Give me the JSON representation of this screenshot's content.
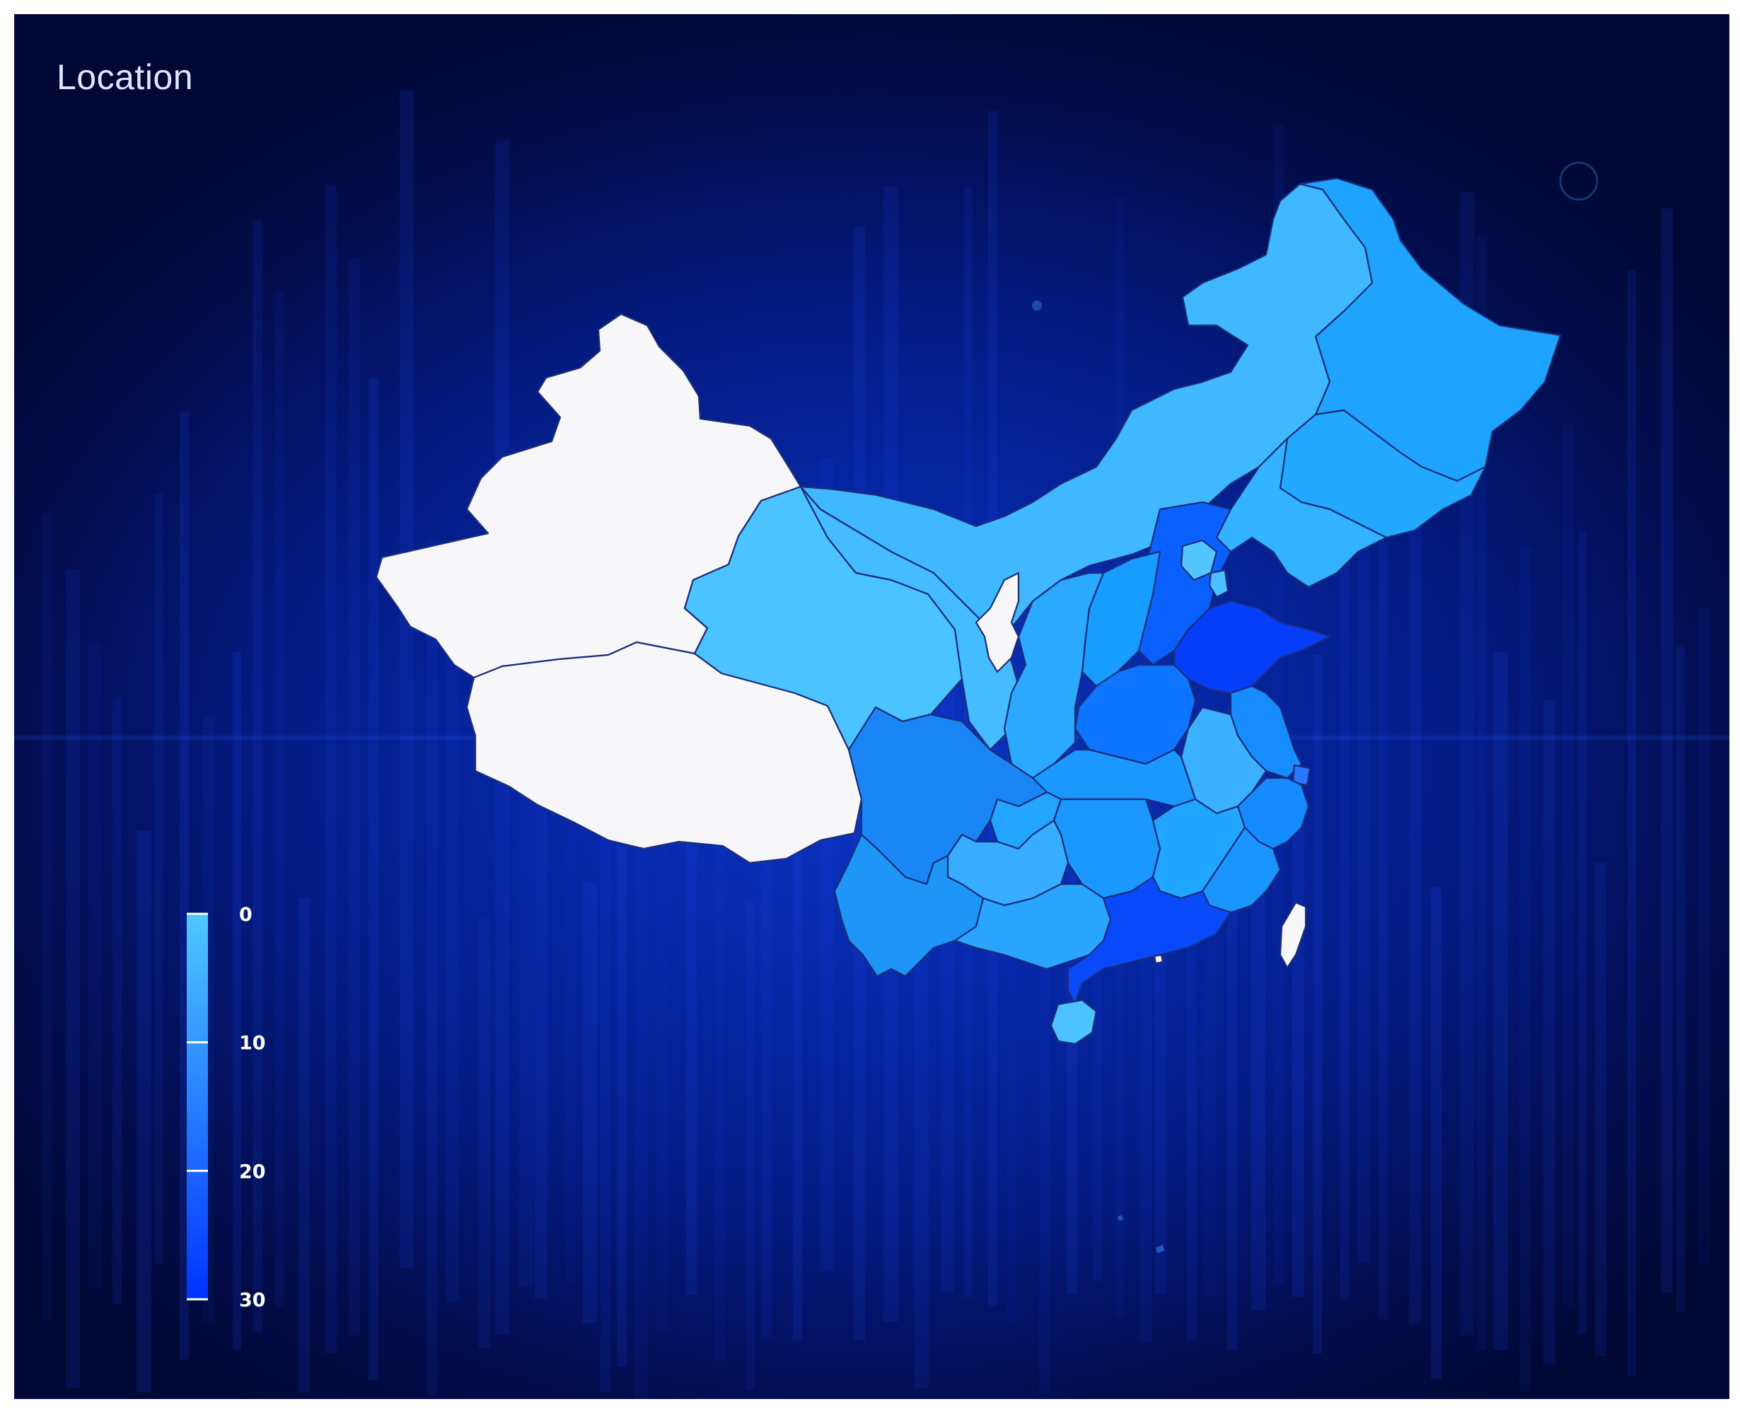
{
  "title": "Location",
  "legend": {
    "ticks": [
      0,
      10,
      20,
      30
    ],
    "min": 0,
    "max": 30,
    "color_low": "#4fc8ff",
    "color_high": "#0033ff",
    "no_data_color": "#f7f6f8"
  },
  "colors": {
    "background": "#041a80",
    "border": "#1a2e78"
  }
}
